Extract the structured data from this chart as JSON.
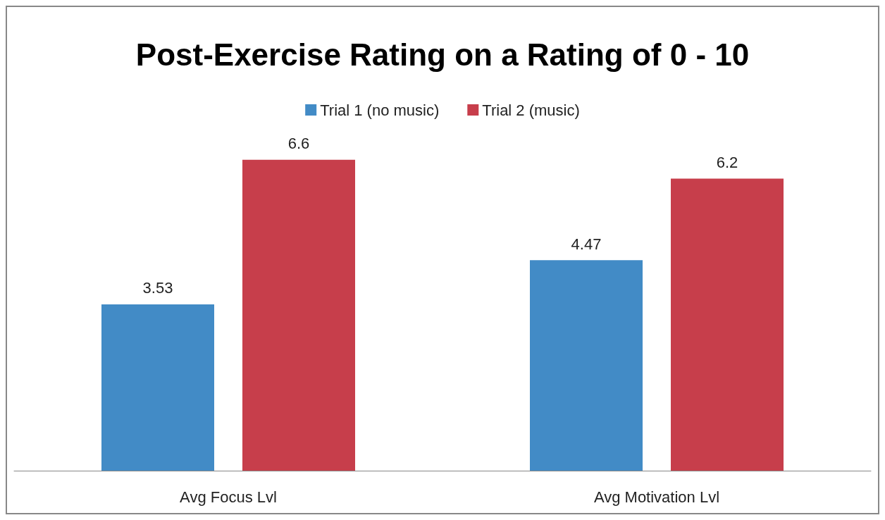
{
  "chart_data": {
    "type": "bar",
    "title": "Post-Exercise Rating on a Rating of 0 - 10",
    "categories": [
      "Avg Focus Lvl",
      "Avg Motivation Lvl"
    ],
    "series": [
      {
        "name": "Trial 1 (no music)",
        "color": "#428bc6",
        "values": [
          3.53,
          4.47
        ]
      },
      {
        "name": "Trial 2 (music)",
        "color": "#c73e4b",
        "values": [
          6.6,
          6.2
        ]
      }
    ],
    "data_labels": true,
    "legend": "top",
    "grid": false,
    "tick_labels": "x"
  }
}
